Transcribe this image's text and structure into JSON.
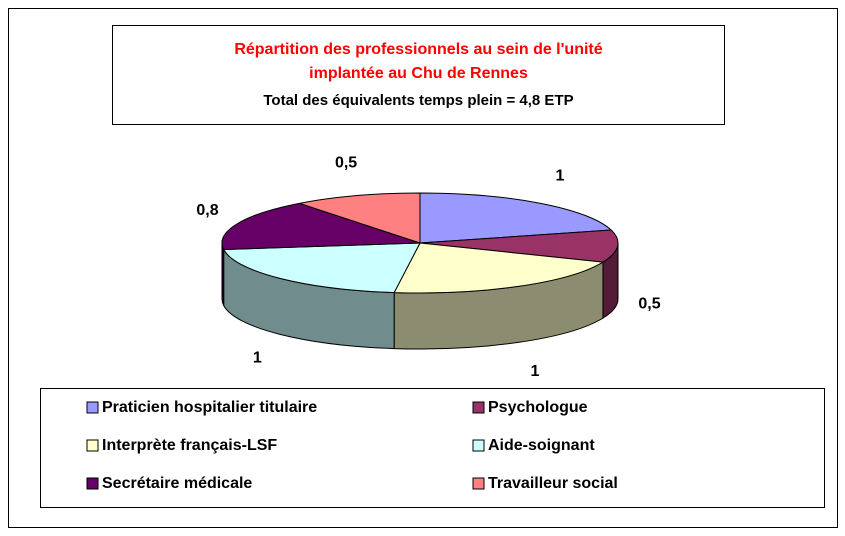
{
  "chart_data": {
    "type": "pie3d",
    "title": "Répartition des professionnels au sein de l'unité implantée au Chu de Rennes",
    "subtitle": "Total des équivalents temps plein = 4,8 ETP",
    "categories": [
      "Praticien hospitalier titulaire",
      "Psychologue",
      "Interprète français-LSF",
      "Aide-soignant",
      "Secrétaire médicale",
      "Travailleur social"
    ],
    "values": [
      1,
      0.5,
      1,
      1,
      0.8,
      0.5
    ],
    "value_labels": [
      "1",
      "0,5",
      "1",
      "1",
      "0,8",
      "0,5"
    ],
    "colors": [
      "#9999ff",
      "#993366",
      "#ffffcc",
      "#ccffff",
      "#660066",
      "#ff8080"
    ],
    "legend": "bottom"
  }
}
